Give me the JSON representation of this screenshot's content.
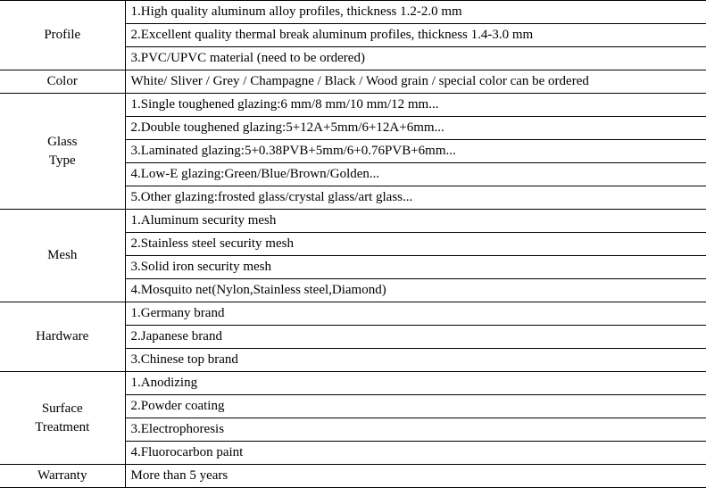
{
  "rows": [
    {
      "label": "Profile",
      "lines": [
        "1.High quality aluminum alloy profiles, thickness 1.2-2.0 mm",
        "2.Excellent quality thermal break aluminum profiles, thickness 1.4-3.0 mm",
        "3.PVC/UPVC material (need to be ordered)"
      ]
    },
    {
      "label": "Color",
      "lines": [
        "White/ Sliver / Grey / Champagne / Black / Wood grain / special color can be ordered"
      ]
    },
    {
      "label": "Glass Type",
      "lines": [
        "1.Single toughened glazing:6 mm/8 mm/10 mm/12 mm...",
        "2.Double toughened glazing:5+12A+5mm/6+12A+6mm...",
        "3.Laminated glazing:5+0.38PVB+5mm/6+0.76PVB+6mm...",
        "4.Low-E glazing:Green/Blue/Brown/Golden...",
        "5.Other glazing:frosted glass/crystal glass/art glass..."
      ]
    },
    {
      "label": "Mesh",
      "lines": [
        "1.Aluminum security mesh",
        "2.Stainless steel security mesh",
        "3.Solid iron security mesh",
        "4.Mosquito net(Nylon,Stainless steel,Diamond)"
      ]
    },
    {
      "label": "Hardware",
      "lines": [
        "1.Germany brand",
        "2.Japanese brand",
        "3.Chinese top brand"
      ]
    },
    {
      "label": "Surface Treatment",
      "lines": [
        "1.Anodizing",
        "2.Powder coating",
        "3.Electrophoresis",
        "4.Fluorocarbon paint"
      ]
    },
    {
      "label": "Warranty",
      "lines": [
        "More than 5 years"
      ]
    }
  ]
}
